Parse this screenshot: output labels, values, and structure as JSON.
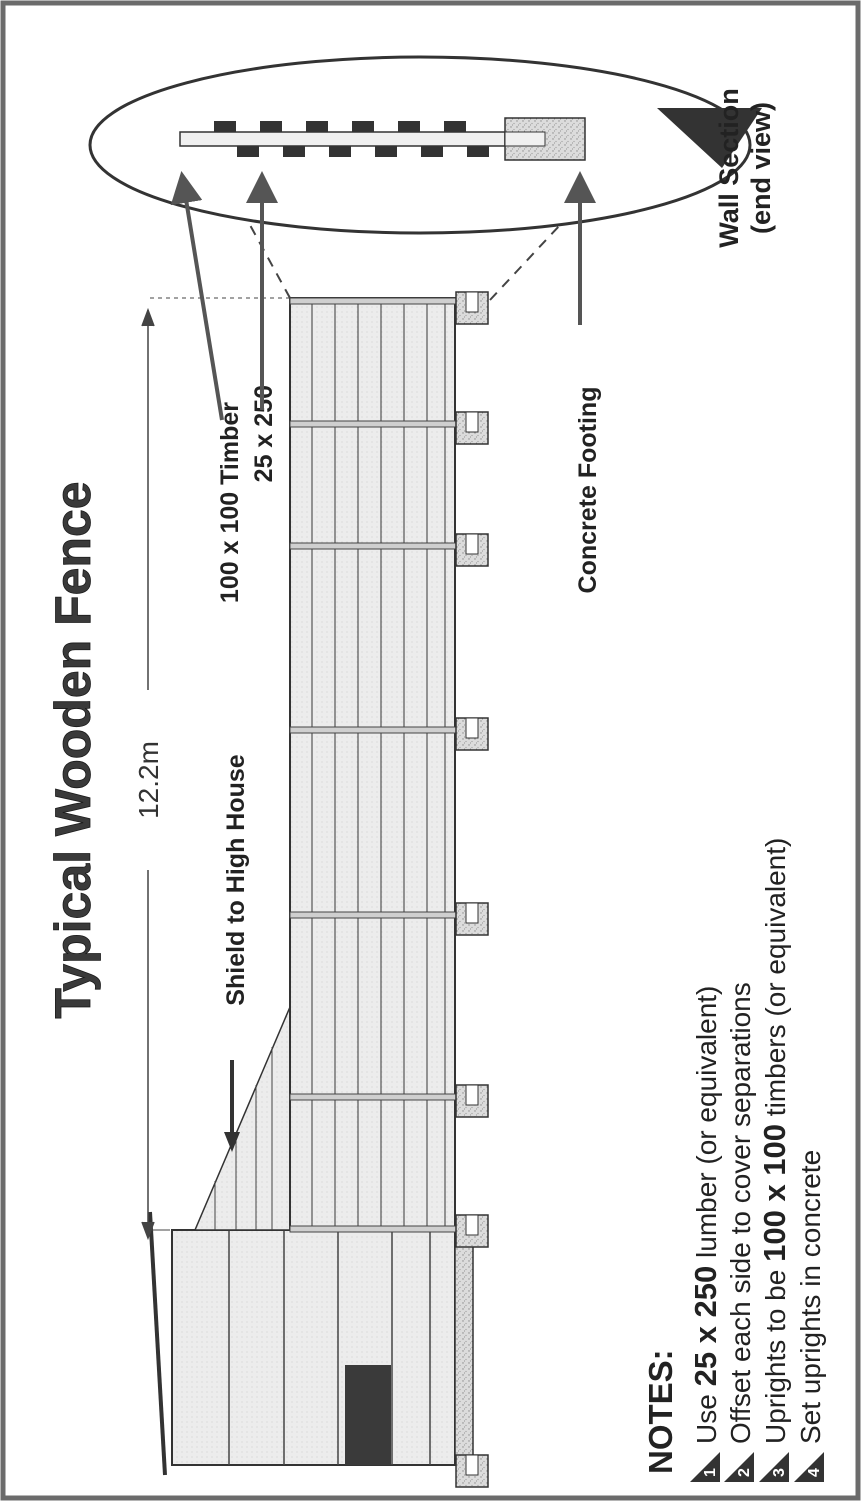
{
  "title": "Typical Wooden Fence",
  "dimension": "12.2m",
  "labels": {
    "shield": "Shield to High House",
    "timber": "100 x 100 Timber",
    "board": "25 x 250",
    "footing": "Concrete Footing",
    "section_line1": "Wall Section",
    "section_line2": "(end view)"
  },
  "notes": {
    "heading": "NOTES:",
    "items": [
      {
        "num": "1",
        "pre": "Use ",
        "bold": "25 x 250",
        "post": " lumber (or equivalent)"
      },
      {
        "num": "2",
        "pre": "Offset each side to cover separations",
        "bold": "",
        "post": ""
      },
      {
        "num": "3",
        "pre": "Uprights to be ",
        "bold": "100 x 100",
        "post": " timbers (or equivalent)"
      },
      {
        "num": "4",
        "pre": "Set uprights in concrete",
        "bold": "",
        "post": ""
      }
    ]
  },
  "colors": {
    "frame": "#6b6b6b",
    "ink": "#222222",
    "board_fill": "#e8e8e8",
    "concrete_fill": "#d4d4d4",
    "door_fill": "#3a3a3a"
  }
}
